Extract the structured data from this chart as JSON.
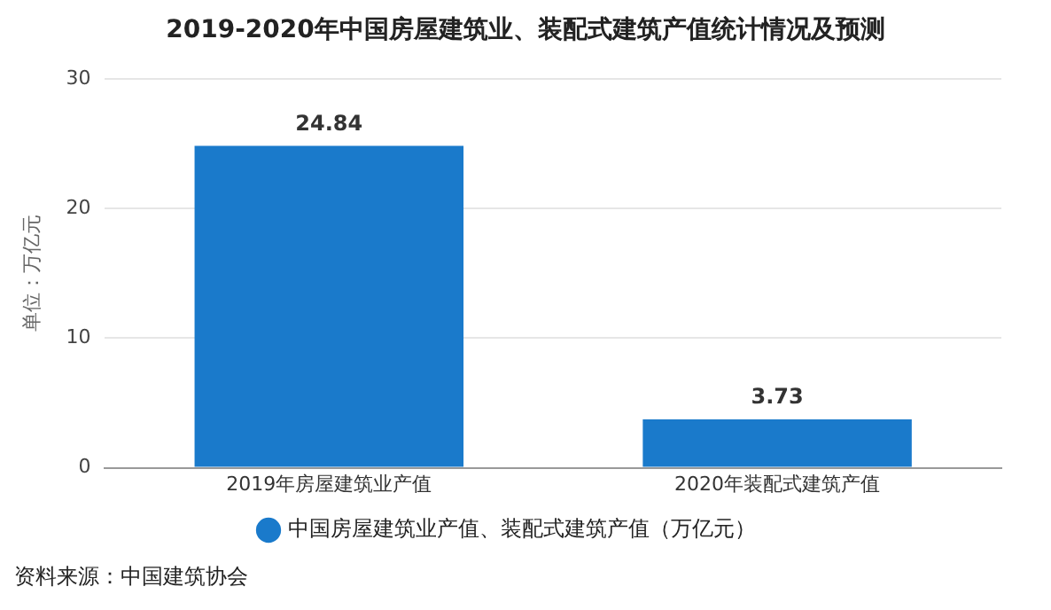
{
  "chart_data": {
    "type": "bar",
    "title": "2019-2020年中国房屋建筑业、装配式建筑产值统计情况及预测",
    "categories": [
      "2019年房屋建筑业产值",
      "2020年装配式建筑产值"
    ],
    "series": [
      {
        "name": "中国房屋建筑业产值、装配式建筑产值（万亿元）",
        "color": "#1a7acb",
        "values": [
          24.84,
          3.73
        ]
      }
    ],
    "ylabel": "单位：万亿元",
    "ylim": [
      0,
      30
    ],
    "yticks": [
      0,
      10,
      20,
      30
    ],
    "grid": "y",
    "legend": "bottom",
    "data_labels": true,
    "annotations": [
      "资料来源：中国建筑协会"
    ]
  }
}
